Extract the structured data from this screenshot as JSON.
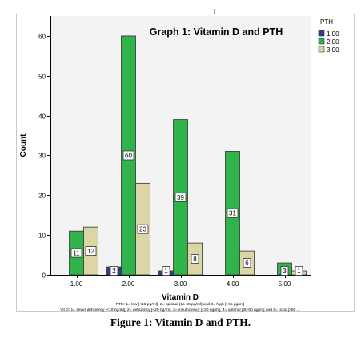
{
  "chart_data": {
    "type": "bar",
    "title": "Graph 1: Vitamin D and PTH",
    "xlabel": "Vitamin D",
    "ylabel": "Count",
    "categories": [
      "1.00",
      "2.00",
      "3.00",
      "4.00",
      "5.00"
    ],
    "ylim": [
      0,
      65
    ],
    "yticks": [
      0,
      10,
      20,
      30,
      40,
      50,
      60
    ],
    "legend_title": "PTH",
    "legend_position": "top-right",
    "series": [
      {
        "name": "1.00",
        "color": "#2a3f8f",
        "values": [
          0,
          2,
          1,
          0,
          0
        ],
        "labels": [
          "",
          "2",
          "1",
          "",
          ""
        ]
      },
      {
        "name": "2.00",
        "color": "#2fb34a",
        "values": [
          11,
          60,
          39,
          31,
          3
        ],
        "labels": [
          "11",
          "60",
          "39",
          "31",
          "3"
        ]
      },
      {
        "name": "3.00",
        "color": "#dcd6a6",
        "values": [
          12,
          23,
          8,
          6,
          1
        ],
        "labels": [
          "12",
          "23",
          "8",
          "6",
          "1"
        ]
      }
    ],
    "footnotes": [
      "PTH: 1= low [<15 pg/ml], 2= optimal [15-65 pg/ml] and 3= high [>65 pg/ml]",
      "Vit D: 1= sever deficiency [<10 ng/ml], 2= deficiency [<20 ng/ml], 3= insufficiency [<30 ng/ml], 4= optimal [30-60 ng/ml] and 5= toxic [>60 ..."
    ]
  },
  "caption": "Figure 1: Vitamin D and PTH."
}
